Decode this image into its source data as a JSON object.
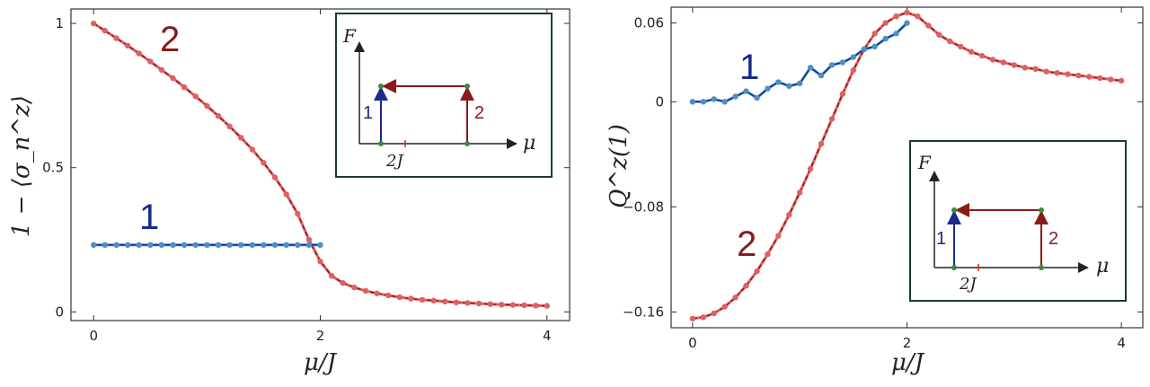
{
  "colors": {
    "blue_points": "#4a90c8",
    "blue_line": "#1a2a8c",
    "red_points": "#e06060",
    "red_line": "#8b1a1a",
    "green_dot": "#3a8a3a",
    "inset_border": "#1b3a3a"
  },
  "chart_data": [
    {
      "type": "line",
      "title": "",
      "xlabel": "μ/J",
      "ylabel": "1 − ⟨σ_n^z⟩",
      "xlim": [
        -0.2,
        4.2
      ],
      "ylim": [
        -0.03,
        1.05
      ],
      "xticks": [
        "0",
        "2",
        "4"
      ],
      "yticks": [
        "0",
        "0.5",
        "1"
      ],
      "series": [
        {
          "name": "2",
          "x": [
            0,
            0.1,
            0.2,
            0.3,
            0.4,
            0.5,
            0.6,
            0.7,
            0.8,
            0.9,
            1.0,
            1.1,
            1.2,
            1.3,
            1.4,
            1.5,
            1.6,
            1.7,
            1.8,
            1.9,
            2.0,
            2.1,
            2.2,
            2.3,
            2.4,
            2.5,
            2.6,
            2.7,
            2.8,
            2.9,
            3.0,
            3.1,
            3.2,
            3.3,
            3.4,
            3.5,
            3.6,
            3.7,
            3.8,
            3.9,
            4.0
          ],
          "values": [
            1.0,
            0.975,
            0.949,
            0.923,
            0.896,
            0.868,
            0.839,
            0.81,
            0.779,
            0.747,
            0.714,
            0.679,
            0.643,
            0.604,
            0.563,
            0.517,
            0.466,
            0.408,
            0.34,
            0.25,
            0.175,
            0.125,
            0.1,
            0.085,
            0.073,
            0.064,
            0.057,
            0.051,
            0.046,
            0.042,
            0.039,
            0.036,
            0.033,
            0.031,
            0.029,
            0.027,
            0.025,
            0.024,
            0.023,
            0.022,
            0.021
          ]
        },
        {
          "name": "1",
          "x": [
            0,
            0.1,
            0.2,
            0.3,
            0.4,
            0.5,
            0.6,
            0.7,
            0.8,
            0.9,
            1.0,
            1.1,
            1.2,
            1.3,
            1.4,
            1.5,
            1.6,
            1.7,
            1.8,
            1.9,
            2.0
          ],
          "values": [
            0.232,
            0.232,
            0.232,
            0.232,
            0.232,
            0.232,
            0.232,
            0.232,
            0.232,
            0.232,
            0.232,
            0.232,
            0.232,
            0.232,
            0.232,
            0.232,
            0.232,
            0.232,
            0.232,
            0.232,
            0.232
          ]
        }
      ]
    },
    {
      "type": "line",
      "title": "",
      "xlabel": "μ/J",
      "ylabel": "Q^z(1)",
      "xlim": [
        -0.2,
        4.2
      ],
      "ylim": [
        -0.172,
        0.072
      ],
      "xticks": [
        "0",
        "2",
        "4"
      ],
      "yticks": [
        "0.06",
        "0",
        "−0.08",
        "−0.16"
      ],
      "series": [
        {
          "name": "2",
          "x": [
            0,
            0.1,
            0.2,
            0.3,
            0.4,
            0.5,
            0.6,
            0.7,
            0.8,
            0.9,
            1.0,
            1.1,
            1.2,
            1.3,
            1.4,
            1.5,
            1.6,
            1.7,
            1.8,
            1.9,
            2.0,
            2.1,
            2.2,
            2.3,
            2.4,
            2.5,
            2.6,
            2.7,
            2.8,
            2.9,
            3.0,
            3.1,
            3.2,
            3.3,
            3.4,
            3.5,
            3.6,
            3.7,
            3.8,
            3.9,
            4.0
          ],
          "values": [
            -0.165,
            -0.164,
            -0.161,
            -0.156,
            -0.149,
            -0.14,
            -0.129,
            -0.116,
            -0.102,
            -0.086,
            -0.069,
            -0.051,
            -0.032,
            -0.013,
            0.006,
            0.024,
            0.04,
            0.052,
            0.06,
            0.065,
            0.068,
            0.065,
            0.058,
            0.051,
            0.046,
            0.042,
            0.038,
            0.035,
            0.032,
            0.03,
            0.028,
            0.026,
            0.025,
            0.023,
            0.022,
            0.021,
            0.02,
            0.019,
            0.018,
            0.017,
            0.016
          ]
        },
        {
          "name": "1",
          "x": [
            0,
            0.1,
            0.2,
            0.3,
            0.4,
            0.5,
            0.6,
            0.7,
            0.8,
            0.9,
            1.0,
            1.1,
            1.2,
            1.3,
            1.4,
            1.5,
            1.6,
            1.7,
            1.8,
            1.9,
            2.0
          ],
          "values": [
            0.0,
            0.0,
            0.002,
            0.0,
            0.004,
            0.008,
            0.003,
            0.01,
            0.015,
            0.012,
            0.014,
            0.026,
            0.02,
            0.028,
            0.03,
            0.034,
            0.04,
            0.042,
            0.048,
            0.052,
            0.06
          ]
        }
      ]
    }
  ],
  "insets": {
    "y_label": "F",
    "x_label": "μ",
    "tick_label": "2J",
    "path1_label": "1",
    "path2_label": "2"
  },
  "curve_labels": {
    "left": {
      "one": "1",
      "two": "2"
    },
    "right": {
      "one": "1",
      "two": "2"
    }
  }
}
